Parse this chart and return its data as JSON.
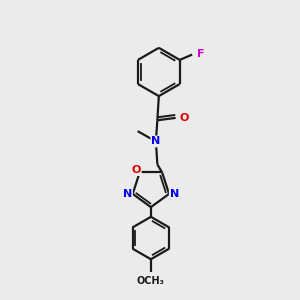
{
  "background_color": "#ebebeb",
  "bond_color": "#1a1a1a",
  "atom_colors": {
    "N": "#0000ee",
    "O": "#dd0000",
    "F": "#cc00cc",
    "C": "#1a1a1a"
  },
  "figsize": [
    3.0,
    3.0
  ],
  "dpi": 100
}
